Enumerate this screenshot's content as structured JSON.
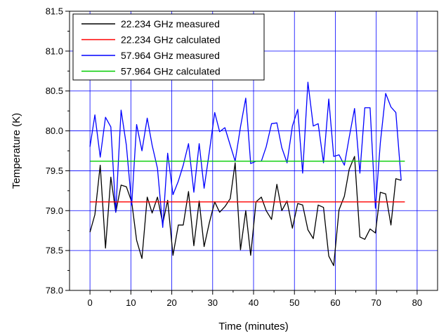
{
  "chart_data": {
    "type": "line",
    "title": "",
    "xlabel": "Time (minutes)",
    "ylabel": "Temperature (K)",
    "xlim": [
      -5,
      85
    ],
    "ylim": [
      78.0,
      81.5
    ],
    "x_ticks": [
      0,
      10,
      20,
      30,
      40,
      50,
      60,
      70,
      80
    ],
    "y_ticks": [
      78.0,
      78.5,
      79.0,
      79.5,
      80.0,
      80.5,
      81.0,
      81.5
    ],
    "x_tick_labels": [
      "0",
      "10",
      "20",
      "30",
      "40",
      "50",
      "60",
      "70",
      "80"
    ],
    "y_tick_labels": [
      "78.0",
      "78.5",
      "79.0",
      "79.5",
      "80.0",
      "80.5",
      "81.0",
      "81.5"
    ],
    "grid": true,
    "legend_position": "top-left",
    "series": [
      {
        "name": "22.234 GHz measured",
        "color": "#000000",
        "x": [
          0,
          1.2,
          2.5,
          3.8,
          5.1,
          6.3,
          7.6,
          8.9,
          10.2,
          11.4,
          12.7,
          14.0,
          15.2,
          16.5,
          17.8,
          19.0,
          20.3,
          21.6,
          22.8,
          24.1,
          25.4,
          26.7,
          27.9,
          29.2,
          30.5,
          31.7,
          33.0,
          34.3,
          35.5,
          36.8,
          38.1,
          39.3,
          40.6,
          41.9,
          43.1,
          44.4,
          45.7,
          46.9,
          48.2,
          49.5,
          50.8,
          52.0,
          53.3,
          54.6,
          55.8,
          57.1,
          58.4,
          59.6,
          60.9,
          62.2,
          63.4,
          64.7,
          66.0,
          67.2,
          68.5,
          69.8,
          71.0,
          72.3,
          73.6,
          74.8,
          76.1
        ],
        "y": [
          78.73,
          78.95,
          79.57,
          78.53,
          79.42,
          78.98,
          79.32,
          79.3,
          79.11,
          78.63,
          78.4,
          79.17,
          78.97,
          79.17,
          78.84,
          79.13,
          78.44,
          78.82,
          78.82,
          79.24,
          78.56,
          79.12,
          78.55,
          78.85,
          79.11,
          78.98,
          79.05,
          79.15,
          79.6,
          78.51,
          79.0,
          78.44,
          79.11,
          79.17,
          79.0,
          78.89,
          79.33,
          79.0,
          79.12,
          78.78,
          79.09,
          79.07,
          78.76,
          78.65,
          79.07,
          79.04,
          78.43,
          78.31,
          79.01,
          79.18,
          79.52,
          79.68,
          78.67,
          78.64,
          78.77,
          78.72,
          79.23,
          79.21,
          78.82,
          79.4,
          79.38
        ]
      },
      {
        "name": "22.234 GHz calculated",
        "color": "#ff0000",
        "x": [
          0,
          77
        ],
        "y": [
          79.11,
          79.11
        ]
      },
      {
        "name": "57.964 GHz measured",
        "color": "#0000ff",
        "x": [
          0,
          1.2,
          2.5,
          3.8,
          5.1,
          6.3,
          7.6,
          8.9,
          10.2,
          11.4,
          12.7,
          14.0,
          15.2,
          16.5,
          17.8,
          19.0,
          20.3,
          21.6,
          22.8,
          24.1,
          25.4,
          26.7,
          27.9,
          29.2,
          30.5,
          31.7,
          33.0,
          34.3,
          35.5,
          36.8,
          38.1,
          39.3,
          40.6,
          41.9,
          43.1,
          44.4,
          45.7,
          46.9,
          48.2,
          49.5,
          50.8,
          52.0,
          53.3,
          54.6,
          55.8,
          57.1,
          58.4,
          59.6,
          60.9,
          62.2,
          63.4,
          64.7,
          66.0,
          67.2,
          68.5,
          69.8,
          71.0,
          72.3,
          73.6,
          74.8,
          76.1
        ],
        "y": [
          79.8,
          80.2,
          79.67,
          80.17,
          80.05,
          78.98,
          80.26,
          79.82,
          79.07,
          80.08,
          79.75,
          80.16,
          79.82,
          79.53,
          78.79,
          79.72,
          79.2,
          79.37,
          79.57,
          79.84,
          79.23,
          79.84,
          79.28,
          79.74,
          80.23,
          79.99,
          80.04,
          79.82,
          79.62,
          80.05,
          80.41,
          79.59,
          79.62,
          79.62,
          79.8,
          80.09,
          80.1,
          79.79,
          79.6,
          80.06,
          80.27,
          79.47,
          80.61,
          80.06,
          80.09,
          79.6,
          80.4,
          79.68,
          79.7,
          79.57,
          79.92,
          80.28,
          79.47,
          80.29,
          80.29,
          79.03,
          79.85,
          80.47,
          80.3,
          80.23,
          79.38
        ]
      },
      {
        "name": "57.964 GHz calculated",
        "color": "#00cc00",
        "x": [
          0,
          77
        ],
        "y": [
          79.62,
          79.62
        ]
      }
    ]
  }
}
